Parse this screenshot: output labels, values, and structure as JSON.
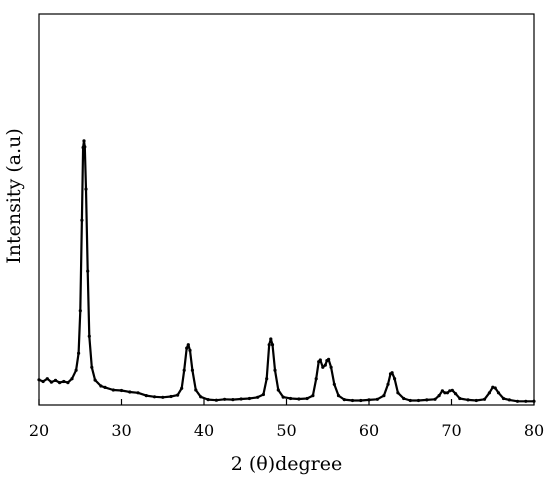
{
  "chart_data": {
    "type": "line",
    "title": "",
    "xlabel": "2 (θ)degree",
    "ylabel": "Intensity (a.u)",
    "xlim": [
      20,
      80
    ],
    "ylim": [
      0,
      100
    ],
    "xticks": [
      20,
      30,
      40,
      50,
      60,
      70,
      80
    ],
    "yticks_visible": false,
    "grid": false,
    "legend": "none",
    "line_color": "#000000",
    "series": [
      {
        "points": [
          [
            20.0,
            8.2
          ],
          [
            20.5,
            7.6
          ],
          [
            21.0,
            8.6
          ],
          [
            21.5,
            7.4
          ],
          [
            22.0,
            8.0
          ],
          [
            22.5,
            7.2
          ],
          [
            23.0,
            7.6
          ],
          [
            23.5,
            7.2
          ],
          [
            24.0,
            8.6
          ],
          [
            24.5,
            11.6
          ],
          [
            24.8,
            17.6
          ],
          [
            25.0,
            32.6
          ],
          [
            25.2,
            64.6
          ],
          [
            25.35,
            90.3
          ],
          [
            25.45,
            92.6
          ],
          [
            25.55,
            90.5
          ],
          [
            25.7,
            75.6
          ],
          [
            25.9,
            46.6
          ],
          [
            26.1,
            23.6
          ],
          [
            26.4,
            12.6
          ],
          [
            26.8,
            8.1
          ],
          [
            27.5,
            6.0
          ],
          [
            28.0,
            5.5
          ],
          [
            29.0,
            4.6
          ],
          [
            30.0,
            4.4
          ],
          [
            31.0,
            3.9
          ],
          [
            32.0,
            3.6
          ],
          [
            33.0,
            2.6
          ],
          [
            34.0,
            2.2
          ],
          [
            35.0,
            2.0
          ],
          [
            36.0,
            2.3
          ],
          [
            36.8,
            2.8
          ],
          [
            37.3,
            5.2
          ],
          [
            37.6,
            11.6
          ],
          [
            37.9,
            19.4
          ],
          [
            38.1,
            20.6
          ],
          [
            38.3,
            18.6
          ],
          [
            38.6,
            11.6
          ],
          [
            39.0,
            4.6
          ],
          [
            39.6,
            2.2
          ],
          [
            40.5,
            1.2
          ],
          [
            41.5,
            1.0
          ],
          [
            42.5,
            1.3
          ],
          [
            43.5,
            1.2
          ],
          [
            44.5,
            1.4
          ],
          [
            45.5,
            1.6
          ],
          [
            46.5,
            2.0
          ],
          [
            47.2,
            3.0
          ],
          [
            47.6,
            8.6
          ],
          [
            47.9,
            20.6
          ],
          [
            48.1,
            22.6
          ],
          [
            48.3,
            20.6
          ],
          [
            48.6,
            11.6
          ],
          [
            49.0,
            4.6
          ],
          [
            49.6,
            2.1
          ],
          [
            50.5,
            1.6
          ],
          [
            51.5,
            1.4
          ],
          [
            52.5,
            1.6
          ],
          [
            53.2,
            2.6
          ],
          [
            53.6,
            8.6
          ],
          [
            53.9,
            14.6
          ],
          [
            54.1,
            15.2
          ],
          [
            54.4,
            12.6
          ],
          [
            54.7,
            13.4
          ],
          [
            54.9,
            15.0
          ],
          [
            55.1,
            15.4
          ],
          [
            55.4,
            12.6
          ],
          [
            55.8,
            6.6
          ],
          [
            56.3,
            2.6
          ],
          [
            57.0,
            1.2
          ],
          [
            58.0,
            0.9
          ],
          [
            59.0,
            0.9
          ],
          [
            60.0,
            1.1
          ],
          [
            61.0,
            1.3
          ],
          [
            61.8,
            2.6
          ],
          [
            62.3,
            6.6
          ],
          [
            62.6,
            10.3
          ],
          [
            62.8,
            10.7
          ],
          [
            63.1,
            8.6
          ],
          [
            63.5,
            3.6
          ],
          [
            64.2,
            1.6
          ],
          [
            65.0,
            0.9
          ],
          [
            66.0,
            0.9
          ],
          [
            67.0,
            1.1
          ],
          [
            68.0,
            1.3
          ],
          [
            68.5,
            2.6
          ],
          [
            68.9,
            4.3
          ],
          [
            69.2,
            3.6
          ],
          [
            69.5,
            3.6
          ],
          [
            69.8,
            4.3
          ],
          [
            70.1,
            4.5
          ],
          [
            70.5,
            3.3
          ],
          [
            71.0,
            1.6
          ],
          [
            72.0,
            1.1
          ],
          [
            73.0,
            0.9
          ],
          [
            74.0,
            1.3
          ],
          [
            74.6,
            3.6
          ],
          [
            75.0,
            5.6
          ],
          [
            75.3,
            5.3
          ],
          [
            75.7,
            3.6
          ],
          [
            76.3,
            1.6
          ],
          [
            77.0,
            1.1
          ],
          [
            78.0,
            0.6
          ],
          [
            79.0,
            0.6
          ],
          [
            80.0,
            0.6
          ]
        ]
      }
    ]
  }
}
